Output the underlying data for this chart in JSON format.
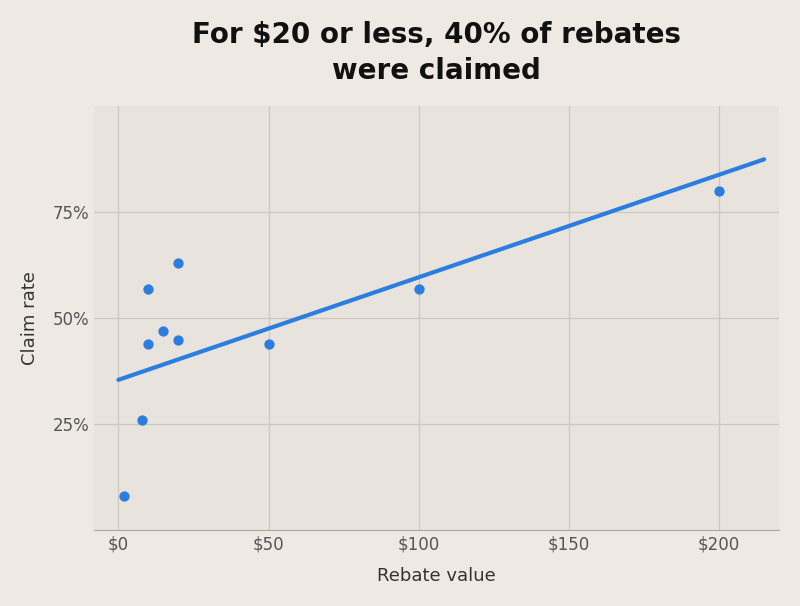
{
  "title": "For $20 or less, 40% of rebates\nwere claimed",
  "xlabel": "Rebate value",
  "ylabel": "Claim rate",
  "background_color": "#eeeae3",
  "plot_bg_color": "#e8e4dd",
  "scatter_x": [
    2,
    8,
    10,
    10,
    15,
    20,
    20,
    50,
    100,
    200
  ],
  "scatter_y": [
    0.08,
    0.26,
    0.44,
    0.57,
    0.47,
    0.45,
    0.63,
    0.44,
    0.57,
    0.8
  ],
  "dot_color": "#2b7de0",
  "line_color": "#2b7de0",
  "line_x": [
    0,
    215
  ],
  "line_y": [
    0.355,
    0.875
  ],
  "xticks": [
    0,
    50,
    100,
    150,
    200
  ],
  "xtick_labels": [
    "$0",
    "$50",
    "$100",
    "$150",
    "$200"
  ],
  "yticks": [
    0.25,
    0.5,
    0.75
  ],
  "ytick_labels": [
    "25%",
    "50%",
    "75%"
  ],
  "xlim": [
    -8,
    220
  ],
  "ylim": [
    0,
    1.0
  ],
  "title_fontsize": 20,
  "label_fontsize": 13,
  "tick_fontsize": 12,
  "dot_size": 55,
  "line_width": 3.0,
  "grid_color": "#ccc8c0",
  "spine_color": "#aaa8a0"
}
